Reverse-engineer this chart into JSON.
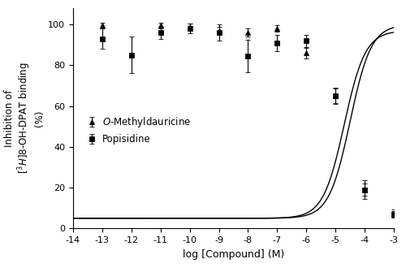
{
  "title": "",
  "xlabel": "log [Compound] (M)",
  "ylabel": "Inhibition of\n[³H]8-OH-DPAT binding\n(%)",
  "xlim": [
    -14,
    -3
  ],
  "ylim": [
    0,
    108
  ],
  "xticks": [
    -14,
    -13,
    -12,
    -11,
    -10,
    -9,
    -8,
    -7,
    -6,
    -5,
    -4,
    -3
  ],
  "xtick_labels": [
    "-14",
    "-13",
    "-12",
    "-11",
    "-10",
    "-9",
    "-8",
    "-7",
    "-6",
    "-5",
    "-4",
    "-3"
  ],
  "yticks": [
    0,
    20,
    40,
    60,
    80,
    100
  ],
  "tri_x": [
    -13,
    -11,
    -10,
    -9,
    -8,
    -7,
    -6,
    -5,
    -4,
    -3
  ],
  "tri_y": [
    99.5,
    99.5,
    99.0,
    97.0,
    96.0,
    98.0,
    86.0,
    65.0,
    19.0,
    7.5
  ],
  "tri_yerr": [
    1.5,
    1.5,
    1.5,
    2.0,
    2.0,
    1.5,
    2.5,
    4.0,
    3.0,
    2.0
  ],
  "sq_x": [
    -13,
    -12,
    -11,
    -10,
    -9,
    -8,
    -7,
    -6,
    -5,
    -4,
    -3
  ],
  "sq_y": [
    93.0,
    85.0,
    96.0,
    98.0,
    96.0,
    84.5,
    91.0,
    92.0,
    65.0,
    19.0,
    7.0
  ],
  "sq_yerr": [
    5.0,
    9.0,
    3.0,
    2.5,
    4.0,
    8.0,
    4.0,
    3.0,
    3.5,
    4.5,
    1.5
  ],
  "line_color": "#000000",
  "marker_color": "#000000",
  "bg_color": "#ffffff",
  "legend_tri_label": "O-Methyldauricine",
  "legend_sq_label": "Popisidine"
}
